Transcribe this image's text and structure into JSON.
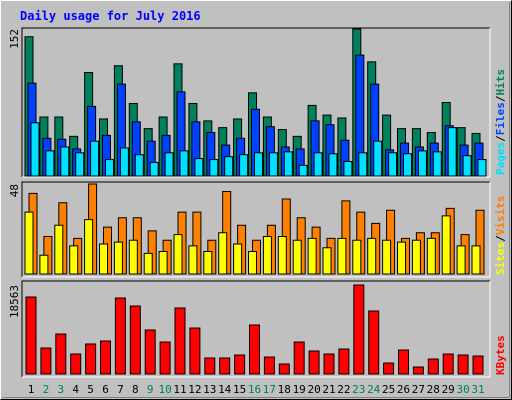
{
  "chart_data": [
    {
      "type": "bar",
      "title": "Daily usage for July 2016",
      "legend_separator": "/",
      "ylim": [
        0,
        152
      ],
      "yticks": [
        152
      ],
      "series": [
        {
          "name": "Hits",
          "color": "#00805c",
          "values": [
            144,
            61,
            61,
            41,
            107,
            59,
            114,
            75,
            49,
            61,
            116,
            75,
            57,
            50,
            59,
            86,
            61,
            48,
            41,
            73,
            63,
            60,
            152,
            118,
            63,
            49,
            49,
            45,
            76,
            50,
            44
          ]
        },
        {
          "name": "Files",
          "color": "#0040ff",
          "values": [
            96,
            39,
            38,
            28,
            72,
            42,
            95,
            56,
            36,
            42,
            87,
            56,
            45,
            32,
            39,
            69,
            51,
            30,
            28,
            57,
            53,
            37,
            125,
            95,
            27,
            34,
            30,
            34,
            52,
            32,
            34
          ]
        },
        {
          "name": "Pages",
          "color": "#00e0ff",
          "values": [
            55,
            26,
            30,
            24,
            36,
            17,
            29,
            22,
            14,
            24,
            26,
            18,
            17,
            20,
            22,
            24,
            24,
            25,
            11,
            24,
            23,
            15,
            24,
            36,
            24,
            23,
            26,
            25,
            50,
            21,
            17
          ]
        }
      ]
    },
    {
      "type": "bar",
      "legend_separator": "/",
      "ylim": [
        0,
        48
      ],
      "yticks": [
        48
      ],
      "series": [
        {
          "name": "Visits",
          "color": "#ff8000",
          "values": [
            43,
            20,
            38,
            19,
            48,
            25,
            30,
            30,
            23,
            18,
            33,
            33,
            18,
            44,
            26,
            18,
            26,
            40,
            30,
            25,
            19,
            39,
            33,
            27,
            34,
            19,
            22,
            22,
            35,
            21,
            34
          ]
        },
        {
          "name": "Sites",
          "color": "#ffff00",
          "values": [
            33,
            10,
            26,
            15,
            29,
            16,
            17,
            18,
            11,
            12,
            21,
            15,
            12,
            22,
            16,
            12,
            20,
            20,
            18,
            19,
            14,
            19,
            18,
            19,
            18,
            17,
            18,
            19,
            31,
            15,
            15
          ]
        }
      ]
    },
    {
      "type": "bar",
      "legend_separator": "/",
      "ylim": [
        0,
        18563
      ],
      "yticks": [
        18563
      ],
      "categories": [
        "1",
        "2",
        "3",
        "4",
        "5",
        "6",
        "7",
        "8",
        "9",
        "10",
        "11",
        "12",
        "13",
        "14",
        "15",
        "16",
        "17",
        "18",
        "19",
        "20",
        "21",
        "22",
        "23",
        "24",
        "25",
        "26",
        "27",
        "28",
        "29",
        "30",
        "31"
      ],
      "category_colors": [
        "#000000",
        "#00805c",
        "#00805c",
        "#000000",
        "#000000",
        "#000000",
        "#000000",
        "#000000",
        "#00805c",
        "#00805c",
        "#000000",
        "#000000",
        "#000000",
        "#000000",
        "#000000",
        "#00805c",
        "#00805c",
        "#000000",
        "#000000",
        "#000000",
        "#000000",
        "#000000",
        "#00805c",
        "#00805c",
        "#000000",
        "#000000",
        "#000000",
        "#000000",
        "#000000",
        "#00805c",
        "#00805c"
      ],
      "series": [
        {
          "name": "KBytes",
          "color": "#ff0000",
          "values": [
            16060,
            5420,
            8340,
            4170,
            6260,
            6880,
            15850,
            14180,
            9180,
            6670,
            13770,
            9590,
            3340,
            3340,
            3960,
            10220,
            3540,
            2090,
            6670,
            4800,
            4170,
            5210,
            18563,
            13140,
            2290,
            5000,
            1460,
            3130,
            4170,
            3960,
            3750
          ]
        }
      ]
    }
  ]
}
